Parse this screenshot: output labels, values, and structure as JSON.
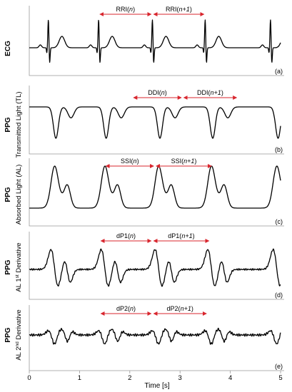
{
  "chart_data": {
    "type": "line",
    "xlabel": "Time [s]",
    "xlim": [
      0,
      5
    ],
    "x_ticks": [
      "0",
      "1",
      "2",
      "3",
      "4",
      "5"
    ],
    "accent_color": "#d8262e",
    "trace_color": "#000000",
    "beat_times": [
      0.38,
      1.38,
      2.45,
      3.5,
      4.8
    ],
    "panels": [
      {
        "id": "ecg",
        "tag": "(a)",
        "ylabel_top": "ECG",
        "ylabel_bottom": "",
        "annotations": [
          {
            "text": "RRI(",
            "italic": "n",
            "close": ")",
            "x_start": 1.38,
            "x_end": 2.45
          },
          {
            "text": "RRI(",
            "italic": "n+1",
            "close": ")",
            "x_start": 2.45,
            "x_end": 3.5
          }
        ]
      },
      {
        "id": "tl",
        "tag": "(b)",
        "ylabel_top": "PPG",
        "ylabel_bottom": "Transmitted Light (TL)",
        "annotations": [
          {
            "text": "DDI(",
            "italic": "n",
            "close": ")",
            "x_start": 2.05,
            "x_end": 3.05
          },
          {
            "text": "DDI(",
            "italic": "n+1",
            "close": ")",
            "x_start": 3.05,
            "x_end": 4.15
          }
        ]
      },
      {
        "id": "al",
        "tag": "(c)",
        "ylabel_top": "PPG",
        "ylabel_bottom": "Absorbed Light (AL)",
        "annotations": [
          {
            "text": "SSI(",
            "italic": "n",
            "close": ")",
            "x_start": 1.5,
            "x_end": 2.5
          },
          {
            "text": "SSI(",
            "italic": "n+1",
            "close": ")",
            "x_start": 2.5,
            "x_end": 3.65
          }
        ]
      },
      {
        "id": "d1",
        "tag": "(d)",
        "ylabel_top": "PPG",
        "ylabel_bottom": "AL 1st Derivative",
        "annotations": [
          {
            "text": "dP1(",
            "italic": "n",
            "close": ")",
            "x_start": 1.4,
            "x_end": 2.45
          },
          {
            "text": "dP1(",
            "italic": "n+1",
            "close": ")",
            "x_start": 2.45,
            "x_end": 3.6
          }
        ]
      },
      {
        "id": "d2",
        "tag": "(e)",
        "ylabel_top": "PPG",
        "ylabel_bottom": "AL 2nd Derivative",
        "annotations": [
          {
            "text": "dP2(",
            "italic": "n",
            "close": ")",
            "x_start": 1.4,
            "x_end": 2.45
          },
          {
            "text": "dP2(",
            "italic": "n+1",
            "close": ")",
            "x_start": 2.45,
            "x_end": 3.55
          }
        ]
      }
    ]
  }
}
